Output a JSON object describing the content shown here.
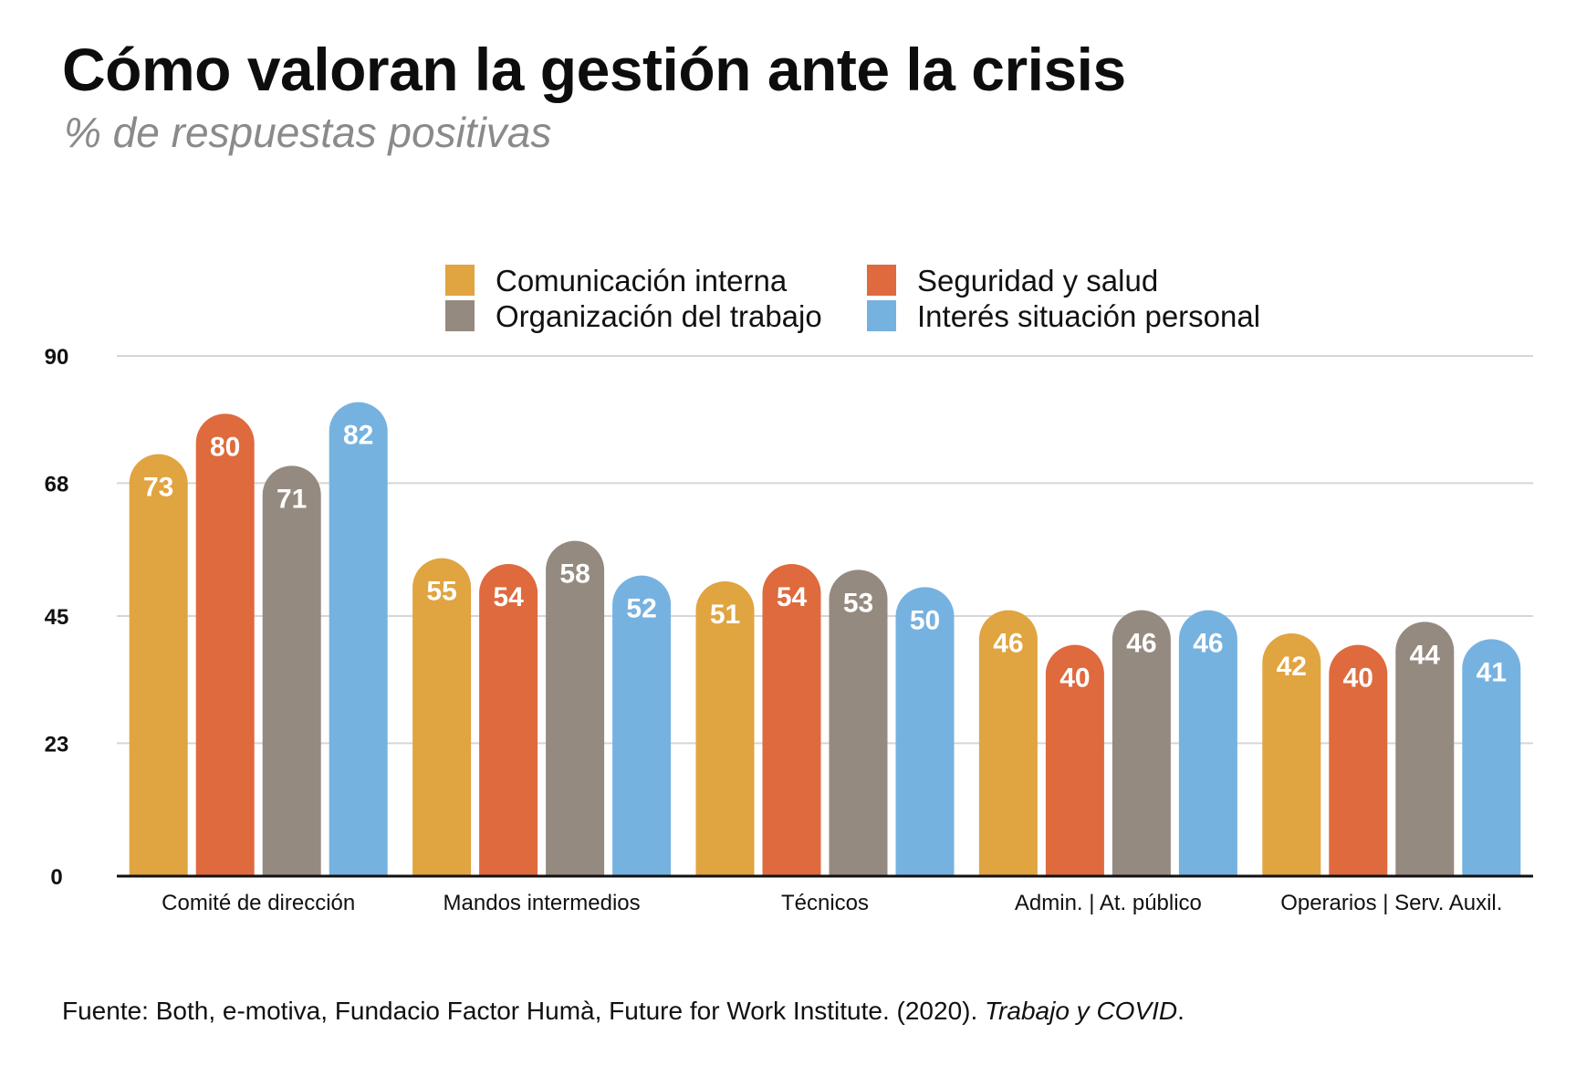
{
  "header": {
    "title": "Cómo valoran la gestión ante la crisis",
    "subtitle": "% de respuestas positivas"
  },
  "source": {
    "text": "Fuente: Both, e-motiva, Fundacio Factor Humà, Future for Work Institute. (2020). ",
    "italic": "Trabajo y COVID",
    "end": "."
  },
  "chart_data": {
    "type": "bar",
    "title": "Cómo valoran la gestión ante la crisis",
    "subtitle": "% de respuestas positivas",
    "xlabel": "",
    "ylabel": "",
    "ylim": [
      0,
      90
    ],
    "yticks": [
      0,
      23,
      45,
      68,
      90
    ],
    "grid": true,
    "legend_position": "top",
    "categories": [
      "Comité de dirección",
      "Mandos intermedios",
      "Técnicos",
      "Admin. | At. público",
      "Operarios | Serv. Auxil."
    ],
    "series": [
      {
        "name": "Comunicación interna",
        "color": "#E0A440",
        "values": [
          73,
          55,
          51,
          46,
          42
        ]
      },
      {
        "name": "Seguridad y salud",
        "color": "#DE6A3D",
        "values": [
          80,
          54,
          54,
          40,
          40
        ]
      },
      {
        "name": "Organización del trabajo",
        "color": "#958A80",
        "values": [
          71,
          58,
          53,
          46,
          44
        ]
      },
      {
        "name": "Interés situación personal",
        "color": "#76B2E0",
        "values": [
          82,
          52,
          50,
          46,
          41
        ]
      }
    ]
  }
}
